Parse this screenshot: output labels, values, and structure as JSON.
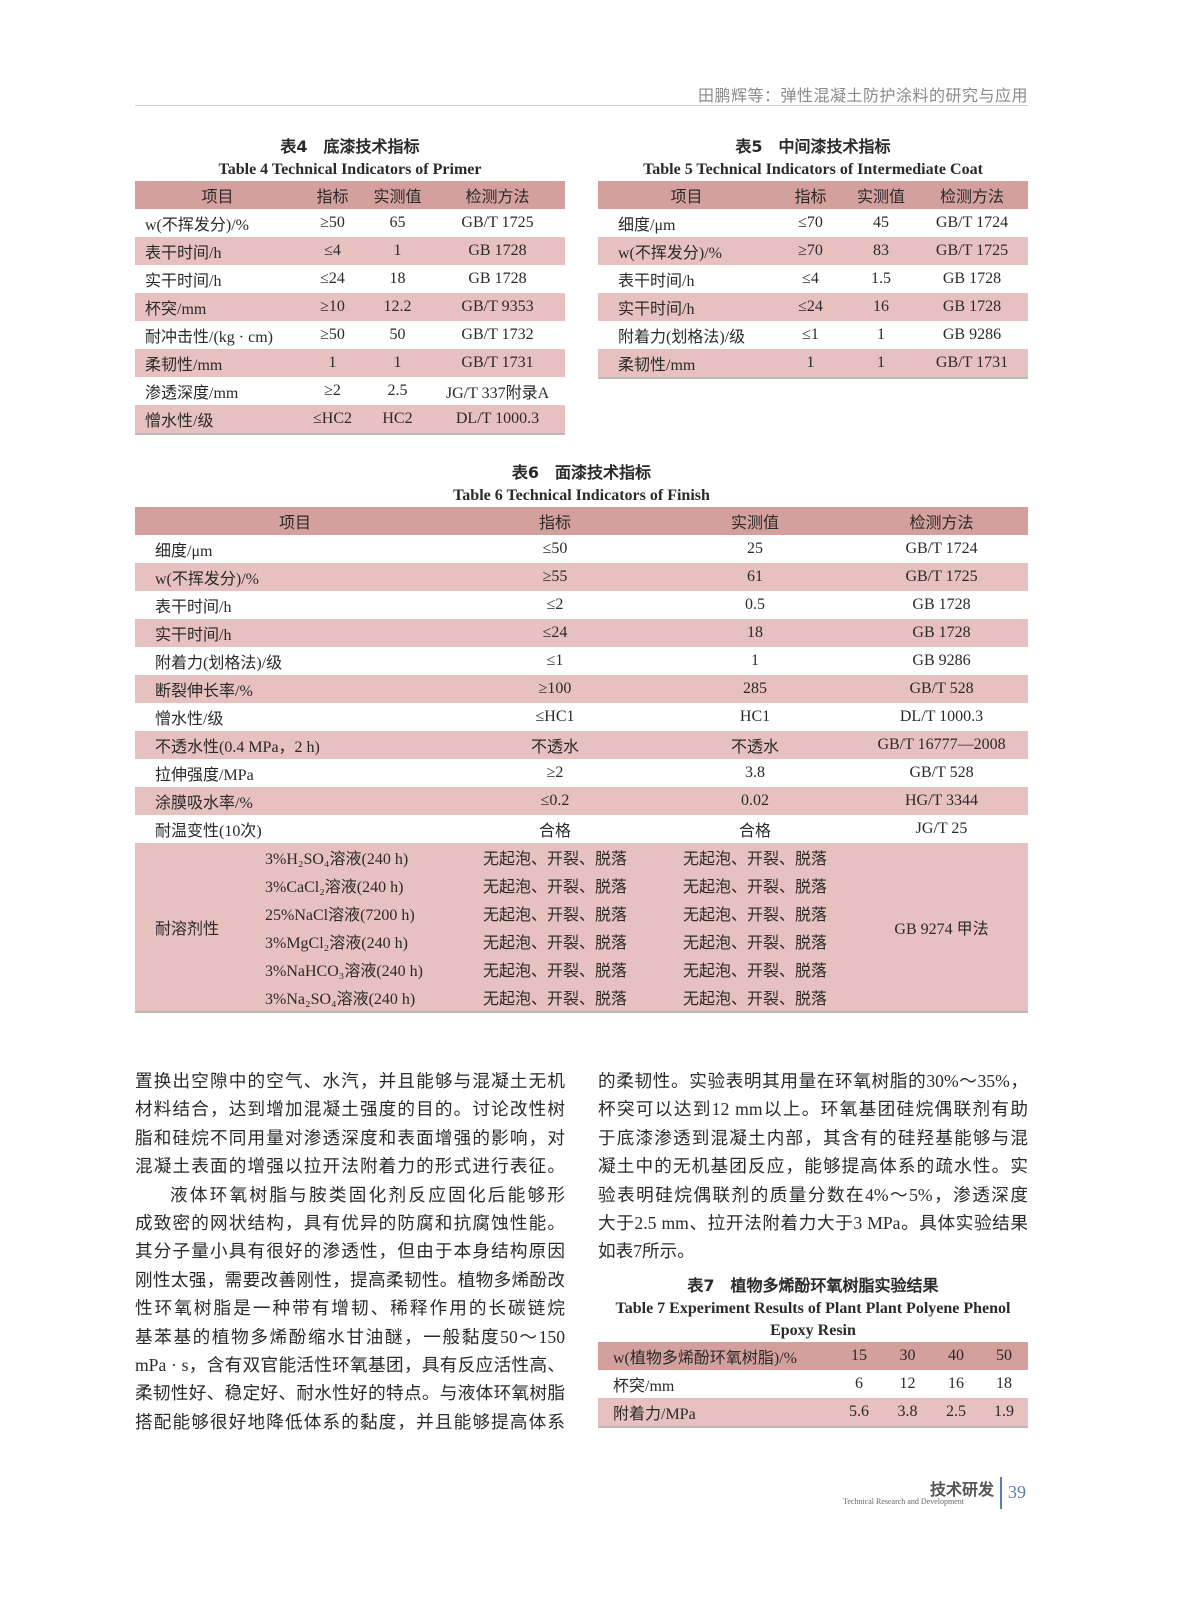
{
  "running_head": "田鹏辉等：弹性混凝土防护涂料的研究与应用",
  "table4": {
    "caption_cn": "表4　底漆技术指标",
    "caption_en": "Table 4   Technical Indicators of Primer",
    "headers": [
      "项目",
      "指标",
      "实测值",
      "检测方法"
    ],
    "rows": [
      [
        "w(不挥发分)/%",
        "≥50",
        "65",
        "GB/T 1725"
      ],
      [
        "表干时间/h",
        "≤4",
        "1",
        "GB 1728"
      ],
      [
        "实干时间/h",
        "≤24",
        "18",
        "GB 1728"
      ],
      [
        "杯突/mm",
        "≥10",
        "12.2",
        "GB/T 9353"
      ],
      [
        "耐冲击性/(kg · cm)",
        "≥50",
        "50",
        "GB/T 1732"
      ],
      [
        "柔韧性/mm",
        "1",
        "1",
        "GB/T 1731"
      ],
      [
        "渗透深度/mm",
        "≥2",
        "2.5",
        "JG/T 337附录A"
      ],
      [
        "憎水性/级",
        "≤HC2",
        "HC2",
        "DL/T 1000.3"
      ]
    ]
  },
  "table5": {
    "caption_cn": "表5　中间漆技术指标",
    "caption_en": "Table 5   Technical Indicators of Intermediate Coat",
    "headers": [
      "项目",
      "指标",
      "实测值",
      "检测方法"
    ],
    "rows": [
      [
        "细度/μm",
        "≤70",
        "45",
        "GB/T 1724"
      ],
      [
        "w(不挥发分)/%",
        "≥70",
        "83",
        "GB/T 1725"
      ],
      [
        "表干时间/h",
        "≤4",
        "1.5",
        "GB 1728"
      ],
      [
        "实干时间/h",
        "≤24",
        "16",
        "GB 1728"
      ],
      [
        "附着力(划格法)/级",
        "≤1",
        "1",
        "GB 9286"
      ],
      [
        "柔韧性/mm",
        "1",
        "1",
        "GB/T 1731"
      ]
    ]
  },
  "table6": {
    "caption_cn": "表6　面漆技术指标",
    "caption_en": "Table 6   Technical Indicators of Finish",
    "headers": [
      "项目",
      "指标",
      "实测值",
      "检测方法"
    ],
    "rows": [
      [
        "细度/μm",
        "≤50",
        "25",
        "GB/T 1724"
      ],
      [
        "w(不挥发分)/%",
        "≥55",
        "61",
        "GB/T 1725"
      ],
      [
        "表干时间/h",
        "≤2",
        "0.5",
        "GB 1728"
      ],
      [
        "实干时间/h",
        "≤24",
        "18",
        "GB 1728"
      ],
      [
        "附着力(划格法)/级",
        "≤1",
        "1",
        "GB 9286"
      ],
      [
        "断裂伸长率/%",
        "≥100",
        "285",
        "GB/T 528"
      ],
      [
        "憎水性/级",
        "≤HC1",
        "HC1",
        "DL/T 1000.3"
      ],
      [
        "不透水性(0.4 MPa，2 h)",
        "不透水",
        "不透水",
        "GB/T 16777—2008"
      ],
      [
        "拉伸强度/MPa",
        "≥2",
        "3.8",
        "GB/T 528"
      ],
      [
        "涂膜吸水率/%",
        "≤0.2",
        "0.02",
        "HG/T 3344"
      ],
      [
        "耐温变性(10次)",
        "合格",
        "合格",
        "JG/T 25"
      ]
    ],
    "solvent": {
      "label": "耐溶剂性",
      "method": "GB 9274 甲法",
      "rows": [
        [
          "3%H₂SO₄溶液(240 h)",
          "无起泡、开裂、脱落",
          "无起泡、开裂、脱落"
        ],
        [
          "3%CaCl₂溶液(240 h)",
          "无起泡、开裂、脱落",
          "无起泡、开裂、脱落"
        ],
        [
          "25%NaCl溶液(7200 h)",
          "无起泡、开裂、脱落",
          "无起泡、开裂、脱落"
        ],
        [
          "3%MgCl₂溶液(240 h)",
          "无起泡、开裂、脱落",
          "无起泡、开裂、脱落"
        ],
        [
          "3%NaHCO₃溶液(240 h)",
          "无起泡、开裂、脱落",
          "无起泡、开裂、脱落"
        ],
        [
          "3%Na₂SO₄溶液(240 h)",
          "无起泡、开裂、脱落",
          "无起泡、开裂、脱落"
        ]
      ]
    }
  },
  "body_left": [
    "置换出空隙中的空气、水汽，并且能够与混凝土无机",
    "材料结合，达到增加混凝土强度的目的。讨论改性树",
    "脂和硅烷不同用量对渗透深度和表面增强的影响，对",
    "混凝土表面的增强以拉开法附着力的形式进行表征。",
    "液体环氧树脂与胺类固化剂反应固化后能够形",
    "成致密的网状结构，具有优异的防腐和抗腐蚀性能。",
    "其分子量小具有很好的渗透性，但由于本身结构原因",
    "刚性太强，需要改善刚性，提高柔韧性。植物多烯酚改",
    "性环氧树脂是一种带有增韧、稀释作用的长碳链烷",
    "基苯基的植物多烯酚缩水甘油醚，一般黏度50～150",
    "mPa · s，含有双官能活性环氧基团，具有反应活性高、",
    "柔韧性好、稳定好、耐水性好的特点。与液体环氧树脂",
    "搭配能够很好地降低体系的黏度，并且能够提高体系"
  ],
  "body_right": [
    "的柔韧性。实验表明其用量在环氧树脂的30%～35%，",
    "杯突可以达到12 mm以上。环氧基团硅烷偶联剂有助",
    "于底漆渗透到混凝土内部，其含有的硅羟基能够与混",
    "凝土中的无机基团反应，能够提高体系的疏水性。实",
    "验表明硅烷偶联剂的质量分数在4%～5%，渗透深度",
    "大于2.5 mm、拉开法附着力大于3 MPa。具体实验结果",
    "如表7所示。"
  ],
  "table7": {
    "caption_cn": "表7　植物多烯酚环氧树脂实验结果",
    "caption_en_1": "Table 7   Experiment Results of Plant Plant Polyene Phenol",
    "caption_en_2": "Epoxy Resin",
    "rows": [
      [
        "w(植物多烯酚环氧树脂)/%",
        "15",
        "30",
        "40",
        "50"
      ],
      [
        "杯突/mm",
        "6",
        "12",
        "16",
        "18"
      ],
      [
        "附着力/MPa",
        "5.6",
        "3.8",
        "2.5",
        "1.9"
      ]
    ]
  },
  "footer": {
    "section_cn": "技术研发",
    "section_en": "Technical Research and Development",
    "page_number": "39"
  },
  "colors": {
    "header_row": "#d4a09e",
    "stripe_row": "#e7c1bf",
    "page_number": "#5a7fae"
  }
}
